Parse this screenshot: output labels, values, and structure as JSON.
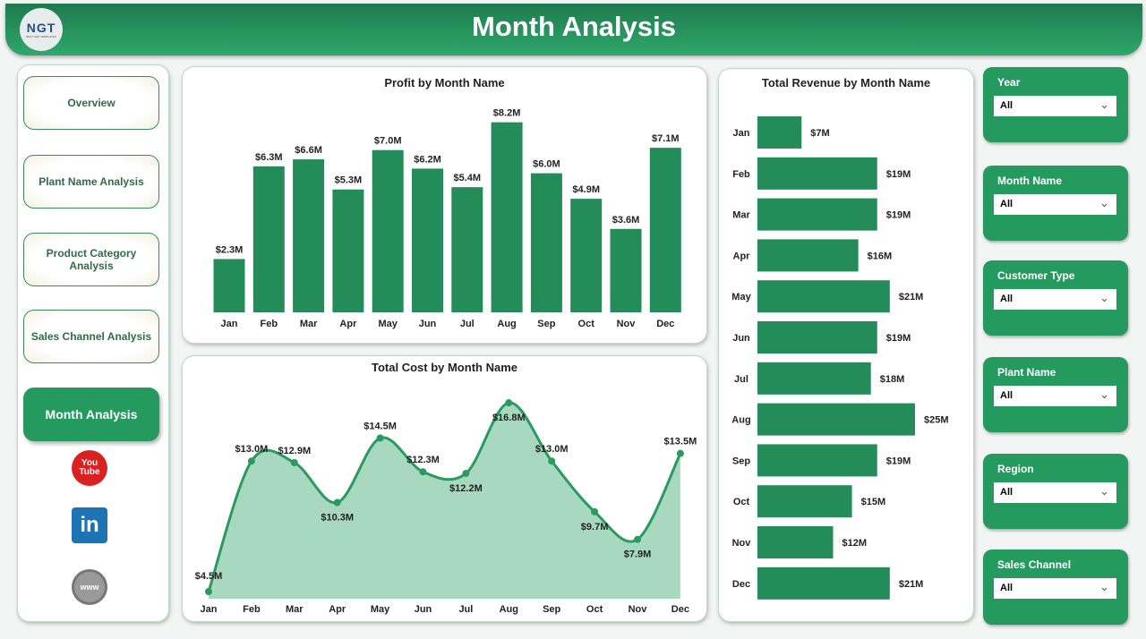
{
  "header": {
    "title": "Month Analysis",
    "logo_text": "NGT"
  },
  "nav": {
    "items": [
      {
        "label": "Overview"
      },
      {
        "label": "Plant Name Analysis"
      },
      {
        "label": "Product Category Analysis"
      },
      {
        "label": "Sales Channel Analysis"
      },
      {
        "label": "Month Analysis",
        "active": true
      }
    ],
    "social": [
      {
        "icon": "youtube-icon",
        "label": "You Tube"
      },
      {
        "icon": "linkedin-icon",
        "label": "in"
      },
      {
        "icon": "globe-icon",
        "label": "www"
      }
    ]
  },
  "filters": [
    {
      "label": "Year",
      "value": "All"
    },
    {
      "label": "Month Name",
      "value": "All"
    },
    {
      "label": "Customer Type",
      "value": "All"
    },
    {
      "label": "Plant Name",
      "value": "All"
    },
    {
      "label": "Region",
      "value": "All"
    },
    {
      "label": "Sales Channel",
      "value": "All"
    }
  ],
  "colors": {
    "bar": "#238c59",
    "line": "#2a9a60",
    "area": "#a8d8bf",
    "header": "#2ea86a"
  },
  "chart_data": [
    {
      "type": "bar",
      "title": "Profit by Month Name",
      "categories": [
        "Jan",
        "Feb",
        "Mar",
        "Apr",
        "May",
        "Jun",
        "Jul",
        "Aug",
        "Sep",
        "Oct",
        "Nov",
        "Dec"
      ],
      "values": [
        2.3,
        6.3,
        6.6,
        5.3,
        7.0,
        6.2,
        5.4,
        8.2,
        6.0,
        4.9,
        3.6,
        7.1
      ],
      "labels": [
        "$2.3M",
        "$6.3M",
        "$6.6M",
        "$5.3M",
        "$7.0M",
        "$6.2M",
        "$5.4M",
        "$8.2M",
        "$6.0M",
        "$4.9M",
        "$3.6M",
        "$7.1M"
      ],
      "unit": "$M"
    },
    {
      "type": "area",
      "title": "Total Cost by Month Name",
      "categories": [
        "Jan",
        "Feb",
        "Mar",
        "Apr",
        "May",
        "Jun",
        "Jul",
        "Aug",
        "Sep",
        "Oct",
        "Nov",
        "Dec"
      ],
      "values": [
        4.5,
        13.0,
        12.9,
        10.3,
        14.5,
        12.3,
        12.2,
        16.8,
        13.0,
        9.7,
        7.9,
        13.5
      ],
      "labels": [
        "$4.5M",
        "$13.0M",
        "$12.9M",
        "$10.3M",
        "$14.5M",
        "$12.3M",
        "$12.2M",
        "$16.8M",
        "$13.0M",
        "$9.7M",
        "$7.9M",
        "$13.5M"
      ],
      "unit": "$M"
    },
    {
      "type": "bar",
      "orientation": "horizontal",
      "title": "Total Revenue by Month Name",
      "categories": [
        "Jan",
        "Feb",
        "Mar",
        "Apr",
        "May",
        "Jun",
        "Jul",
        "Aug",
        "Sep",
        "Oct",
        "Nov",
        "Dec"
      ],
      "values": [
        7,
        19,
        19,
        16,
        21,
        19,
        18,
        25,
        19,
        15,
        12,
        21
      ],
      "labels": [
        "$7M",
        "$19M",
        "$19M",
        "$16M",
        "$21M",
        "$19M",
        "$18M",
        "$25M",
        "$19M",
        "$15M",
        "$12M",
        "$21M"
      ],
      "unit": "$M"
    }
  ]
}
